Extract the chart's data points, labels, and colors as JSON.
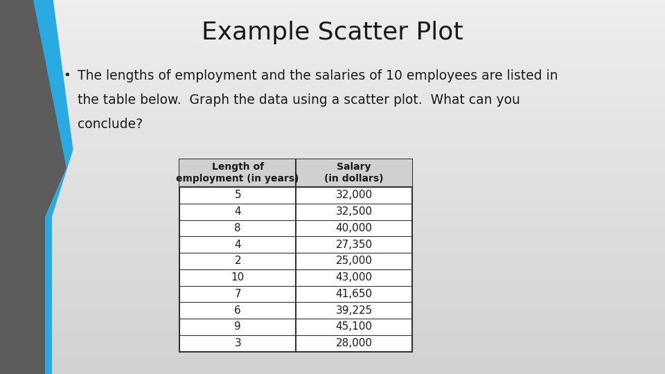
{
  "title": "Example Scatter Plot",
  "title_fontsize": 26,
  "bullet_text_line1": "The lengths of employment and the salaries of 10 employees are listed in",
  "bullet_text_line2": "the table below.  Graph the data using a scatter plot.  What can you",
  "bullet_text_line3": "conclude?",
  "bullet_fontsize": 13.5,
  "col1_header": "Length of\nemployment (in years)",
  "col2_header": "Salary\n(in dollars)",
  "lengths": [
    "5",
    "4",
    "8",
    "4",
    "2",
    "10",
    "7",
    "6",
    "9",
    "3"
  ],
  "salaries": [
    "32,000",
    "32,500",
    "40,000",
    "27,350",
    "25,000",
    "43,000",
    "41,650",
    "39,225",
    "45,100",
    "28,000"
  ],
  "bg_color_top": "#e8e8e8",
  "bg_color_bottom": "#c8c8c8",
  "gray_bar_color": "#5a5a5a",
  "blue_bar_color": "#29ABE2",
  "title_color": "#1a1a1a",
  "text_color": "#1a1a1a",
  "table_border_color": "#333333",
  "table_header_bg": "#d0d0d0",
  "table_row_bg": "#f2f2f2",
  "table_font": "Palatino Linotype",
  "data_fontsize": 11,
  "header_fontsize": 10
}
